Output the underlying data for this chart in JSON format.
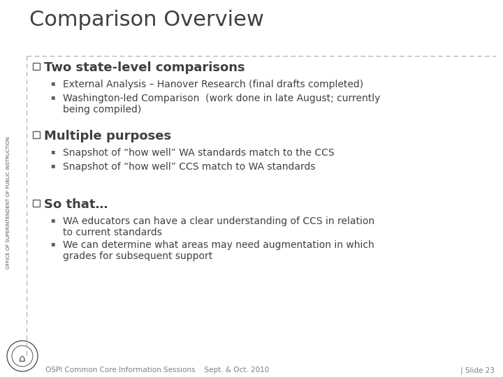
{
  "title": "Comparison Overview",
  "title_fontsize": 22,
  "title_color": "#404040",
  "bg_color": "#ffffff",
  "dashed_line_color": "#aaaaaa",
  "section_header_fontsize": 13,
  "bullet_fontsize": 10,
  "sections": [
    {
      "header": "Two state-level comparisons",
      "bullets": [
        "External Analysis – Hanover Research (final drafts completed)",
        "Washington-led Comparison  (work done in late August; currently\nbeing compiled)"
      ],
      "bullet_lines": [
        1,
        2
      ]
    },
    {
      "header": "Multiple purposes",
      "bullets": [
        "Snapshot of “how well” WA standards match to the CCS",
        "Snapshot of “how well” CCS match to WA standards"
      ],
      "bullet_lines": [
        1,
        1
      ]
    },
    {
      "header": "So that…",
      "bullets": [
        "WA educators can have a clear understanding of CCS in relation\nto current standards",
        "We can determine what areas may need augmentation in which\ngrades for subsequent support"
      ],
      "bullet_lines": [
        2,
        2
      ]
    }
  ],
  "footer_left": "OSPI Common Core Information Sessions    Sept. & Oct. 2010",
  "footer_right": "| Slide 23",
  "footer_fontsize": 7.5,
  "footer_color": "#808080",
  "sidebar_text": "OFFICE OF SUPERINTENDENT OF PUBLIC INSTRUCTION",
  "sidebar_fontsize": 5.0,
  "sidebar_color": "#555555",
  "checkbox_color": "#606060",
  "bullet_marker_color": "#606060",
  "text_color": "#404040"
}
